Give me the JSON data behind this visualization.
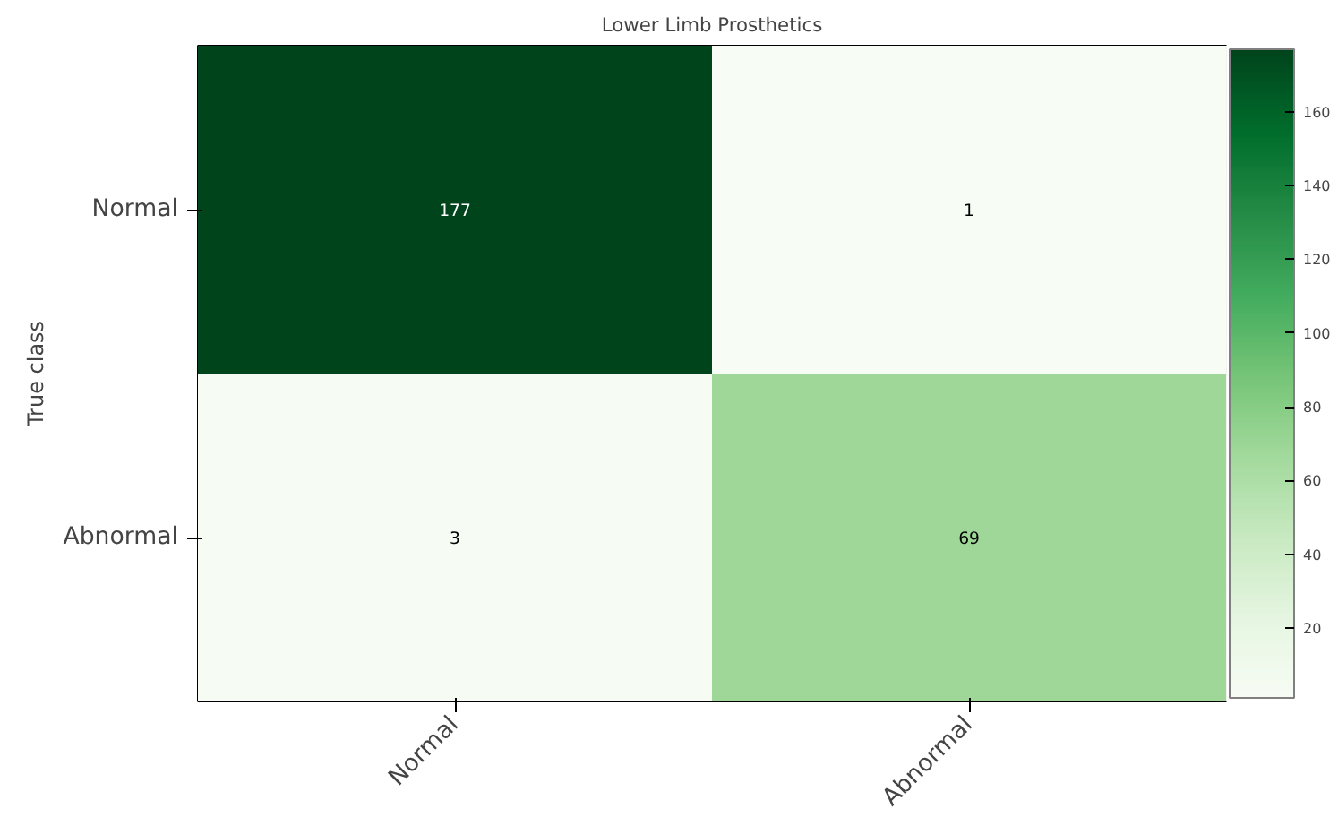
{
  "chart_data": {
    "type": "heatmap",
    "title": "Lower Limb Prosthetics",
    "ylabel": "True class",
    "categories": [
      "Normal",
      "Abnormal"
    ],
    "y_categories": [
      "Normal",
      "Abnormal"
    ],
    "cells": [
      [
        177,
        1
      ],
      [
        3,
        69
      ]
    ],
    "data_labels": true,
    "clim": [
      1,
      177
    ],
    "cticks": [
      20,
      40,
      60,
      80,
      100,
      120,
      140,
      160
    ]
  }
}
